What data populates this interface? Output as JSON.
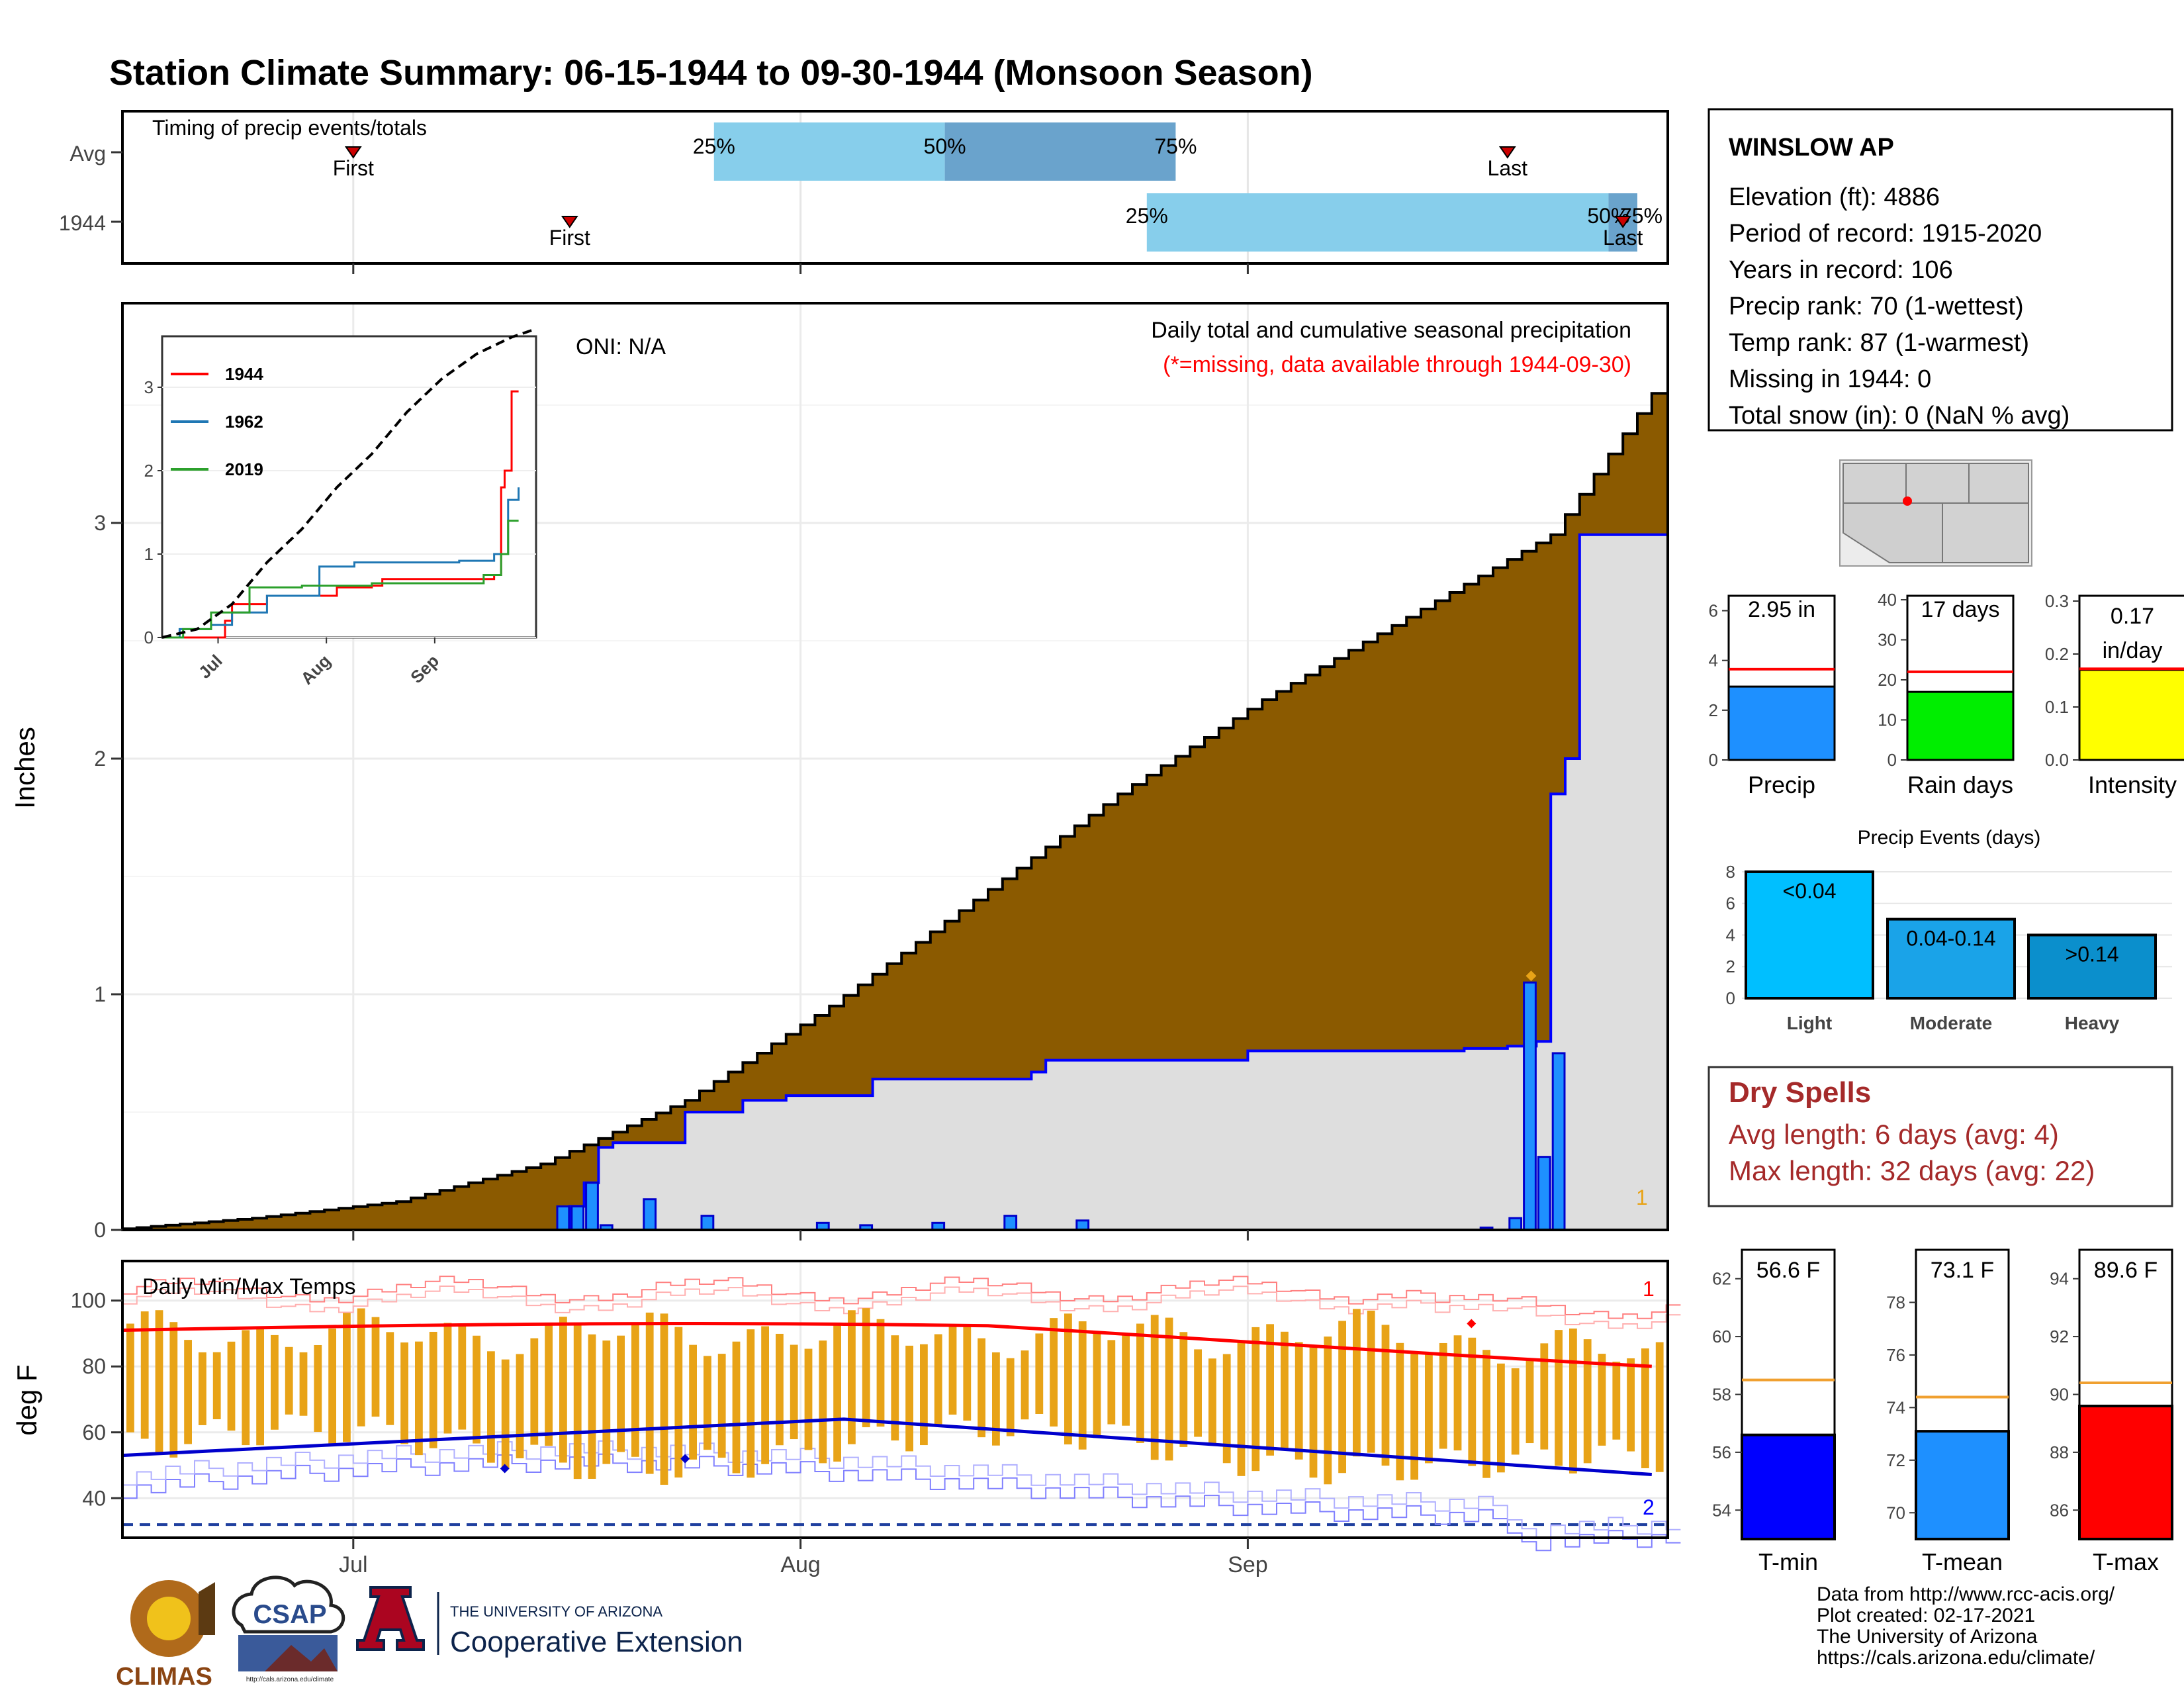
{
  "title": "Station Climate Summary: 06-15-1944 to 09-30-1944 (Monsoon Season)",
  "colors": {
    "title": "#ff0000",
    "accent_red": "#ff0000",
    "brown": "#8b5a00",
    "blue": "#0000ff",
    "bar_blue": "#1e90ff",
    "gray_fill": "#dedede",
    "light_blue": "#87ceeb",
    "mid_blue": "#6aa3cc",
    "orange": "#e8a317",
    "dry_spells": "#a52a2a"
  },
  "x_month_ticks": [
    "Jul",
    "Aug",
    "Sep"
  ],
  "timing_panel": {
    "label": "Timing of precip events/totals",
    "rows": [
      {
        "name": "Avg",
        "first_day": 16,
        "last_day": 96,
        "q25": 41,
        "q50": 57,
        "q75": 73,
        "labels": {
          "first": "First",
          "last": "Last",
          "p25": "25%",
          "p50": "50%",
          "p75": "75%"
        }
      },
      {
        "name": "1944",
        "first_day": 31,
        "last_day": 104,
        "q25": 71,
        "q50": 103,
        "q75": 105,
        "labels": {
          "first": "First",
          "last": "Last",
          "p25": "25%",
          "p50": "50%",
          "p75": "75%"
        }
      }
    ]
  },
  "precip_panel": {
    "ylabel": "Inches",
    "yticks": [
      "0",
      "1",
      "2",
      "3"
    ],
    "oni": "ONI: N/A",
    "subtitle": "Daily total and cumulative seasonal precipitation",
    "missing_note": "(*=missing, data available through 1944-09-30)",
    "flag": "1",
    "season_total_1944": 2.95,
    "avg_season_total": 3.6
  },
  "chart_data": [
    {
      "type": "line",
      "title": "Daily total and cumulative seasonal precipitation",
      "xlabel": "",
      "ylabel": "Inches",
      "x_range": [
        "1944-06-15",
        "1944-09-30"
      ],
      "ylim": [
        0,
        3.9
      ],
      "series": [
        {
          "name": "cumulative average (brown area)",
          "points": [
            [
              0,
              0
            ],
            [
              10,
              0.05
            ],
            [
              20,
              0.12
            ],
            [
              30,
              0.28
            ],
            [
              40,
              0.55
            ],
            [
              50,
              0.95
            ],
            [
              60,
              1.4
            ],
            [
              70,
              1.85
            ],
            [
              80,
              2.25
            ],
            [
              90,
              2.6
            ],
            [
              100,
              2.95
            ],
            [
              107,
              3.55
            ]
          ]
        },
        {
          "name": "cumulative 1944 (blue line)",
          "points": [
            [
              0,
              0
            ],
            [
              30,
              0
            ],
            [
              31,
              0.1
            ],
            [
              32,
              0.2
            ],
            [
              33,
              0.35
            ],
            [
              34,
              0.37
            ],
            [
              38,
              0.37
            ],
            [
              39,
              0.5
            ],
            [
              42,
              0.5
            ],
            [
              43,
              0.55
            ],
            [
              46,
              0.57
            ],
            [
              52,
              0.64
            ],
            [
              60,
              0.64
            ],
            [
              63,
              0.67
            ],
            [
              64,
              0.72
            ],
            [
              75,
              0.72
            ],
            [
              78,
              0.76
            ],
            [
              93,
              0.77
            ],
            [
              96,
              0.78
            ],
            [
              98,
              0.8
            ],
            [
              99,
              1.85
            ],
            [
              100,
              2.0
            ],
            [
              101,
              2.95
            ],
            [
              104,
              2.95
            ]
          ]
        },
        {
          "name": "daily 1944 precipitation",
          "points": [
            [
              30,
              0.1
            ],
            [
              31,
              0.1
            ],
            [
              32,
              0.2
            ],
            [
              33,
              0.02
            ],
            [
              36,
              0.13
            ],
            [
              40,
              0.06
            ],
            [
              48,
              0.03
            ],
            [
              51,
              0.02
            ],
            [
              56,
              0.03
            ],
            [
              61,
              0.06
            ],
            [
              66,
              0.04
            ],
            [
              94,
              0.01
            ],
            [
              96,
              0.05
            ],
            [
              97,
              1.05
            ],
            [
              98,
              0.31
            ],
            [
              99,
              0.75
            ]
          ]
        }
      ]
    },
    {
      "type": "line",
      "title": "",
      "xlabel": "",
      "ylabel": "",
      "x_range": [
        "1944-06-15",
        "1944-09-30"
      ],
      "ylim": [
        0,
        3.8
      ],
      "series": [
        {
          "name": "1944",
          "points": [
            [
              0,
              0
            ],
            [
              10,
              0
            ],
            [
              15,
              0
            ],
            [
              18,
              0.2
            ],
            [
              20,
              0.4
            ],
            [
              30,
              0.5
            ],
            [
              50,
              0.6
            ],
            [
              60,
              0.62
            ],
            [
              63,
              0.7
            ],
            [
              95,
              0.75
            ],
            [
              97,
              1.8
            ],
            [
              98,
              2.0
            ],
            [
              100,
              2.95
            ],
            [
              102,
              2.95
            ]
          ]
        },
        {
          "name": "1962",
          "points": [
            [
              0,
              0
            ],
            [
              5,
              0.1
            ],
            [
              14,
              0.15
            ],
            [
              20,
              0.3
            ],
            [
              30,
              0.5
            ],
            [
              45,
              0.85
            ],
            [
              55,
              0.9
            ],
            [
              85,
              0.92
            ],
            [
              95,
              1.0
            ],
            [
              99,
              1.65
            ],
            [
              102,
              1.8
            ]
          ]
        },
        {
          "name": "2019",
          "points": [
            [
              0,
              0
            ],
            [
              6,
              0.1
            ],
            [
              14,
              0.3
            ],
            [
              25,
              0.6
            ],
            [
              40,
              0.62
            ],
            [
              60,
              0.65
            ],
            [
              92,
              0.75
            ],
            [
              97,
              1.0
            ],
            [
              99,
              1.4
            ],
            [
              102,
              1.4
            ]
          ]
        },
        {
          "name": "",
          "points": [
            [
              0,
              0
            ],
            [
              10,
              0.1
            ],
            [
              20,
              0.4
            ],
            [
              30,
              0.9
            ],
            [
              40,
              1.3
            ],
            [
              50,
              1.8
            ],
            [
              60,
              2.2
            ],
            [
              70,
              2.7
            ],
            [
              80,
              3.1
            ],
            [
              90,
              3.4
            ],
            [
              100,
              3.6
            ],
            [
              107,
              3.7
            ]
          ]
        }
      ],
      "yticks": [
        "0",
        "1",
        "2",
        "3"
      ],
      "xticks": [
        "Jul",
        "Aug",
        "Sep"
      ]
    },
    {
      "type": "bar",
      "title": "Daily Min/Max Temps",
      "ylabel": "deg F",
      "ylim": [
        28,
        112
      ],
      "yticks": [
        "40",
        "60",
        "80",
        "100"
      ],
      "flags": [
        "1",
        "2"
      ],
      "mean_max_start": 91,
      "mean_max_end": 81,
      "mean_min_start": 53,
      "mean_min_mid": 64,
      "mean_min_end": 47,
      "freeze_line": 32
    },
    {
      "type": "bar",
      "categories": [
        "Precip",
        "Rain days",
        "Intensity"
      ],
      "values": [
        2.95,
        17,
        0.17
      ],
      "averages": [
        3.65,
        22,
        0.172
      ],
      "value_labels": [
        "2.95 in",
        "17 days",
        "0.17\nin/day"
      ],
      "yticks": [
        [
          "0",
          "2",
          "4",
          "6"
        ],
        [
          "0",
          "10",
          "20",
          "30",
          "40"
        ],
        [
          "0.0",
          "0.1",
          "0.2",
          "0.3"
        ]
      ]
    },
    {
      "type": "bar",
      "title": "Precip Events (days)",
      "categories": [
        "Light",
        "Moderate",
        "Heavy"
      ],
      "values": [
        8,
        5,
        4
      ],
      "value_labels": [
        "<0.04",
        "0.04-0.14",
        ">0.14"
      ],
      "yticks": [
        "0",
        "2",
        "4",
        "6",
        "8"
      ],
      "ylim": [
        0,
        8.5
      ]
    },
    {
      "type": "bar",
      "categories": [
        "T-min",
        "T-mean",
        "T-max"
      ],
      "values": [
        56.6,
        73.1,
        89.6
      ],
      "averages": [
        58.5,
        74.4,
        90.4
      ],
      "value_labels": [
        "56.6 F",
        "73.1 F",
        "89.6 F"
      ],
      "ranges": [
        [
          53,
          63
        ],
        [
          69,
          80
        ],
        [
          85,
          95
        ]
      ],
      "yticks": [
        [
          "54",
          "56",
          "58",
          "60",
          "62"
        ],
        [
          "70",
          "72",
          "74",
          "76",
          "78"
        ],
        [
          "86",
          "88",
          "90",
          "92",
          "94"
        ]
      ]
    }
  ],
  "station_info": {
    "name": "WINSLOW AP",
    "lines": [
      "Elevation (ft): 4886",
      "Period of record: 1915-2020",
      "Years in record: 106",
      "Precip rank: 70 (1-wettest)",
      "Temp rank: 87 (1-warmest)",
      "Missing in 1944: 0",
      "Total snow (in): 0 (NaN % avg)"
    ]
  },
  "dry_spells": {
    "title": "Dry Spells",
    "avg": "Avg length: 6 days (avg: 4)",
    "max": "Max length: 32 days (avg: 22)"
  },
  "footer": {
    "lines": [
      "Data from http://www.rcc-acis.org/",
      "Plot created: 02-17-2021",
      "The University of Arizona",
      "https://cals.arizona.edu/climate/"
    ],
    "logos": {
      "climas": "CLIMAS",
      "csap": "CSAP",
      "csap_url": "http://cals.arizona.edu/climate",
      "ua_top": "THE UNIVERSITY OF ARIZONA",
      "ua_bottom": "Cooperative Extension",
      "ua_mark": "A"
    }
  }
}
